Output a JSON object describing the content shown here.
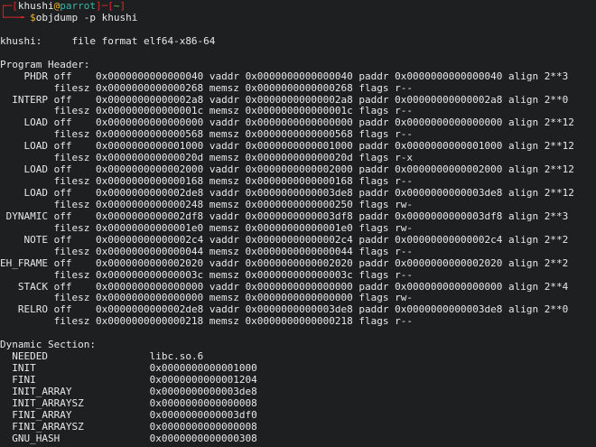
{
  "prompt": {
    "user": "khushi",
    "at": "@",
    "host": "parrot",
    "cwd": "~",
    "symbol": "$",
    "command": "objdump -p khushi"
  },
  "file_format": {
    "label": "khushi:",
    "text": "file format elf64-x86-64"
  },
  "program_header": {
    "title": "Program Header:",
    "entries": [
      {
        "type": "PHDR",
        "off": "0x0000000000000040",
        "vaddr": "0x0000000000000040",
        "paddr": "0x0000000000000040",
        "align": "2**3",
        "filesz": "0x0000000000000268",
        "memsz": "0x0000000000000268",
        "flags": "r--"
      },
      {
        "type": "INTERP",
        "off": "0x00000000000002a8",
        "vaddr": "0x00000000000002a8",
        "paddr": "0x00000000000002a8",
        "align": "2**0",
        "filesz": "0x000000000000001c",
        "memsz": "0x000000000000001c",
        "flags": "r--"
      },
      {
        "type": "LOAD",
        "off": "0x0000000000000000",
        "vaddr": "0x0000000000000000",
        "paddr": "0x0000000000000000",
        "align": "2**12",
        "filesz": "0x0000000000000568",
        "memsz": "0x0000000000000568",
        "flags": "r--"
      },
      {
        "type": "LOAD",
        "off": "0x0000000000001000",
        "vaddr": "0x0000000000001000",
        "paddr": "0x0000000000001000",
        "align": "2**12",
        "filesz": "0x000000000000020d",
        "memsz": "0x000000000000020d",
        "flags": "r-x"
      },
      {
        "type": "LOAD",
        "off": "0x0000000000002000",
        "vaddr": "0x0000000000002000",
        "paddr": "0x0000000000002000",
        "align": "2**12",
        "filesz": "0x0000000000000168",
        "memsz": "0x0000000000000168",
        "flags": "r--"
      },
      {
        "type": "LOAD",
        "off": "0x0000000000002de8",
        "vaddr": "0x0000000000003de8",
        "paddr": "0x0000000000003de8",
        "align": "2**12",
        "filesz": "0x0000000000000248",
        "memsz": "0x0000000000000250",
        "flags": "rw-"
      },
      {
        "type": "DYNAMIC",
        "off": "0x0000000000002df8",
        "vaddr": "0x0000000000003df8",
        "paddr": "0x0000000000003df8",
        "align": "2**3",
        "filesz": "0x00000000000001e0",
        "memsz": "0x00000000000001e0",
        "flags": "rw-"
      },
      {
        "type": "NOTE",
        "off": "0x00000000000002c4",
        "vaddr": "0x00000000000002c4",
        "paddr": "0x00000000000002c4",
        "align": "2**2",
        "filesz": "0x0000000000000044",
        "memsz": "0x0000000000000044",
        "flags": "r--"
      },
      {
        "type": "EH_FRAME",
        "off": "0x0000000000002020",
        "vaddr": "0x0000000000002020",
        "paddr": "0x0000000000002020",
        "align": "2**2",
        "filesz": "0x000000000000003c",
        "memsz": "0x000000000000003c",
        "flags": "r--"
      },
      {
        "type": "STACK",
        "off": "0x0000000000000000",
        "vaddr": "0x0000000000000000",
        "paddr": "0x0000000000000000",
        "align": "2**4",
        "filesz": "0x0000000000000000",
        "memsz": "0x0000000000000000",
        "flags": "rw-"
      },
      {
        "type": "RELRO",
        "off": "0x0000000000002de8",
        "vaddr": "0x0000000000003de8",
        "paddr": "0x0000000000003de8",
        "align": "2**0",
        "filesz": "0x0000000000000218",
        "memsz": "0x0000000000000218",
        "flags": "r--"
      }
    ]
  },
  "dynamic_section": {
    "title": "Dynamic Section:",
    "entries": [
      {
        "tag": "NEEDED",
        "value": "libc.so.6"
      },
      {
        "tag": "INIT",
        "value": "0x0000000000001000"
      },
      {
        "tag": "FINI",
        "value": "0x0000000000001204"
      },
      {
        "tag": "INIT_ARRAY",
        "value": "0x0000000000003de8"
      },
      {
        "tag": "INIT_ARRAYSZ",
        "value": "0x0000000000000008"
      },
      {
        "tag": "FINI_ARRAY",
        "value": "0x0000000000003df0"
      },
      {
        "tag": "FINI_ARRAYSZ",
        "value": "0x0000000000000008"
      },
      {
        "tag": "GNU_HASH",
        "value": "0x0000000000000308"
      }
    ]
  }
}
